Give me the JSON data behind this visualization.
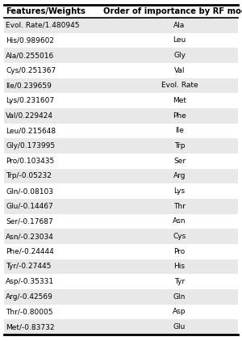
{
  "col1_header": "Features/Weights",
  "col2_header": "Order of importance by RF model",
  "rows": [
    {
      "feature": "Evol. Rate/1.480945",
      "rf": "Ala",
      "shaded": true
    },
    {
      "feature": "His/0.989602",
      "rf": "Leu",
      "shaded": false
    },
    {
      "feature": "Ala/0.255016",
      "rf": "Gly",
      "shaded": true
    },
    {
      "feature": "Cys/0.251367",
      "rf": "Val",
      "shaded": false
    },
    {
      "feature": "Ile/0.239659",
      "rf": "Evol. Rate",
      "shaded": true
    },
    {
      "feature": "Lys/0.231607",
      "rf": "Met",
      "shaded": false
    },
    {
      "feature": "Val/0.229424",
      "rf": "Phe",
      "shaded": true
    },
    {
      "feature": "Leu/0.215648",
      "rf": "Ile",
      "shaded": false
    },
    {
      "feature": "Gly/0.173995",
      "rf": "Trp",
      "shaded": true
    },
    {
      "feature": "Pro/0.103435",
      "rf": "Ser",
      "shaded": false
    },
    {
      "feature": "Trp/-0.05232",
      "rf": "Arg",
      "shaded": true
    },
    {
      "feature": "Gln/-0.08103",
      "rf": "Lys",
      "shaded": false
    },
    {
      "feature": "Glu/-0.14467",
      "rf": "Thr",
      "shaded": true
    },
    {
      "feature": "Ser/-0.17687",
      "rf": "Asn",
      "shaded": false
    },
    {
      "feature": "Asn/-0.23034",
      "rf": "Cys",
      "shaded": true
    },
    {
      "feature": "Phe/-0.24444",
      "rf": "Pro",
      "shaded": false
    },
    {
      "feature": "Tyr/-0.27445",
      "rf": "His",
      "shaded": true
    },
    {
      "feature": "Asp/-0.35331",
      "rf": "Tyr",
      "shaded": false
    },
    {
      "feature": "Arg/-0.42569",
      "rf": "Gln",
      "shaded": true
    },
    {
      "feature": "Thr/-0.80005",
      "rf": "Asp",
      "shaded": false
    },
    {
      "feature": "Met/-0.83732",
      "rf": "Glu",
      "shaded": true
    }
  ],
  "shaded_color": "#e8e8e8",
  "white_color": "#ffffff",
  "text_color": "#000000",
  "font_size": 6.5,
  "header_font_size": 7.2,
  "fig_width": 3.0,
  "fig_height": 4.22,
  "dpi": 100
}
